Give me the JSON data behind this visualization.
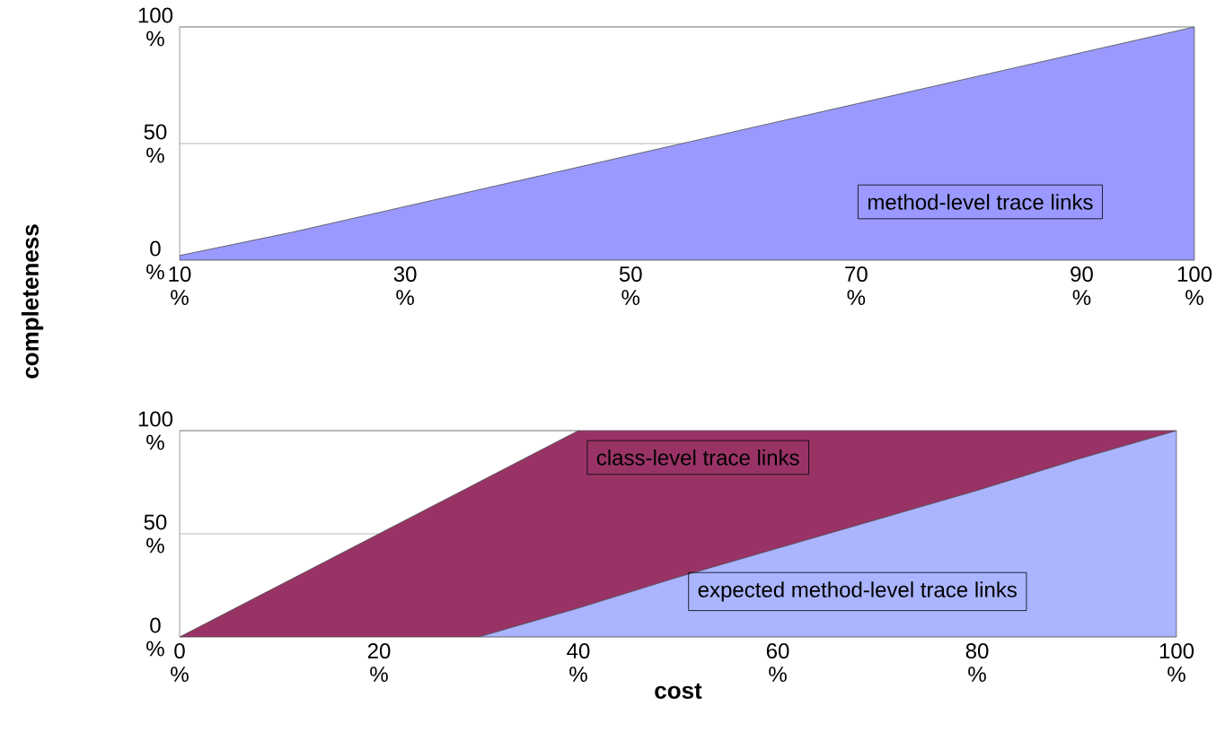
{
  "chart_data": [
    {
      "type": "area",
      "ylabel": "completeness",
      "categories": [
        "10 %",
        null,
        "30 %",
        null,
        "50 %",
        null,
        "70 %",
        null,
        "90 %",
        "100 %"
      ],
      "series": [
        {
          "name": "method-level trace links",
          "color": "#9999ff",
          "values": [
            2,
            12,
            23,
            34,
            45,
            56,
            67,
            78,
            89,
            100
          ]
        }
      ],
      "ylim": [
        0,
        100
      ],
      "yticks": [
        {
          "value": 0,
          "label": "0 %"
        },
        {
          "value": 50,
          "label": "50 %"
        },
        {
          "value": 100,
          "label": "100 %"
        }
      ],
      "grid": "y"
    },
    {
      "type": "area",
      "xlabel": "cost",
      "categories": [
        "0 %",
        null,
        "20 %",
        null,
        "40 %",
        null,
        "60 %",
        null,
        "80 %",
        null,
        "100 %"
      ],
      "series": [
        {
          "name": "class-level trace links",
          "color": "#993366",
          "values": [
            0,
            25,
            50,
            75,
            100,
            100,
            100,
            100,
            100,
            100,
            100
          ]
        },
        {
          "name": "expected method-level trace links",
          "color": "#aab4ff",
          "values": [
            null,
            null,
            null,
            0,
            14,
            29,
            43,
            57,
            71,
            86,
            100
          ]
        }
      ],
      "ylim": [
        0,
        100
      ],
      "yticks": [
        {
          "value": 0,
          "label": "0 %"
        },
        {
          "value": 50,
          "label": "50 %"
        },
        {
          "value": 100,
          "label": "100 %"
        }
      ],
      "grid": "y"
    }
  ]
}
